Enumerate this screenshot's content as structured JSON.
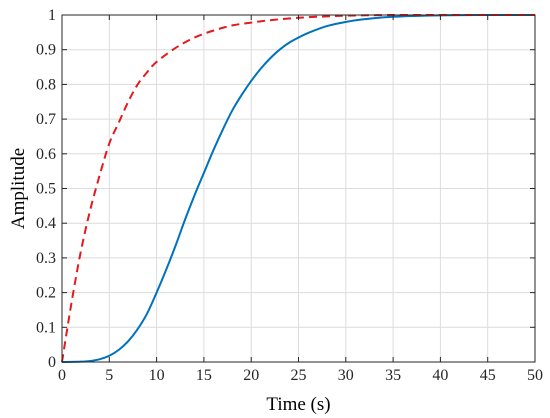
{
  "chart_data": {
    "type": "line",
    "title": "",
    "xlabel": "Time (s)",
    "ylabel": "Amplitude",
    "xlim": [
      0,
      50
    ],
    "ylim": [
      0,
      1
    ],
    "xticks": [
      "0",
      "5",
      "10",
      "15",
      "20",
      "25",
      "30",
      "35",
      "40",
      "45",
      "50"
    ],
    "yticks": [
      "0",
      "0.1",
      "0.2",
      "0.3",
      "0.4",
      "0.5",
      "0.6",
      "0.7",
      "0.8",
      "0.9",
      "1"
    ],
    "grid": true,
    "legend": "none",
    "series": [
      {
        "color": "#e41a1c",
        "style": "dashed",
        "x": [
          0,
          1,
          2,
          3,
          4,
          5,
          6,
          7,
          8,
          9,
          10,
          12,
          14,
          16,
          18,
          20,
          22,
          25,
          28,
          30,
          35,
          40,
          45,
          50
        ],
        "y": [
          0,
          0.17,
          0.32,
          0.44,
          0.54,
          0.63,
          0.69,
          0.75,
          0.8,
          0.835,
          0.865,
          0.905,
          0.935,
          0.955,
          0.97,
          0.978,
          0.985,
          0.992,
          0.996,
          0.998,
          1.0,
          1.0,
          1.0,
          1.0
        ]
      },
      {
        "color": "#0072bd",
        "style": "solid",
        "x": [
          0,
          2,
          3,
          4,
          5,
          6,
          7,
          8,
          9,
          10,
          11,
          12,
          13,
          14,
          15,
          16,
          17,
          18,
          19,
          20,
          21,
          22,
          23,
          24,
          25,
          26,
          28,
          30,
          32,
          35,
          40,
          45,
          50
        ],
        "y": [
          0,
          0.001,
          0.003,
          0.008,
          0.018,
          0.035,
          0.06,
          0.095,
          0.14,
          0.2,
          0.265,
          0.335,
          0.41,
          0.48,
          0.545,
          0.61,
          0.67,
          0.725,
          0.77,
          0.81,
          0.845,
          0.875,
          0.9,
          0.92,
          0.935,
          0.948,
          0.968,
          0.98,
          0.988,
          0.995,
          0.999,
          1.0,
          1.0
        ]
      }
    ]
  }
}
